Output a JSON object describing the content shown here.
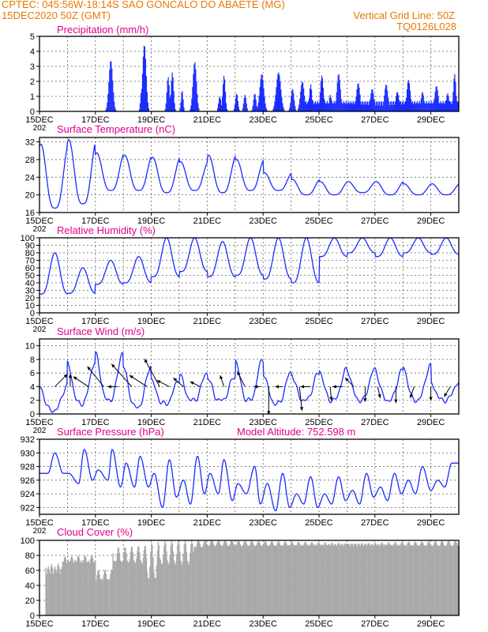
{
  "header": {
    "line1": "CPTEC:   045:56W-18:14S  SAO GONCALO DO ABAETE  (MG)",
    "line2_left": "15DEC2020 50Z (GMT)",
    "line2_right": "Vertical Grid Line: 50Z",
    "line3_right": "TQ0126L028"
  },
  "colors": {
    "header": "#e87800",
    "panel_title": "#e0008c",
    "series": "#1a2dff",
    "cloud_fill": "#a9a9a9",
    "grid": "#666666"
  },
  "x_axis": {
    "ticks": [
      "15DEC",
      "17DEC",
      "19DEC",
      "21DEC",
      "23DEC",
      "25DEC",
      "27DEC",
      "29DEC"
    ],
    "tick_days": [
      0,
      2,
      4,
      6,
      8,
      10,
      12,
      14
    ],
    "range_days": [
      0,
      15
    ],
    "first_tick_sublabel": "202"
  },
  "chart_data": [
    {
      "id": "precip",
      "type": "bar",
      "title": "Precipitation (mm/h)",
      "ylim": [
        0,
        5
      ],
      "yticks": [
        0,
        1,
        2,
        3,
        4,
        5
      ],
      "grid": true,
      "events": [
        {
          "day": 2.55,
          "peak": 3.4,
          "width": 0.15
        },
        {
          "day": 3.65,
          "peak": 1.5,
          "width": 0.08
        },
        {
          "day": 3.75,
          "peak": 4.45,
          "width": 0.14
        },
        {
          "day": 4.6,
          "peak": 2.3,
          "width": 0.1
        },
        {
          "day": 4.75,
          "peak": 2.6,
          "width": 0.1
        },
        {
          "day": 5.1,
          "peak": 1.4,
          "width": 0.08
        },
        {
          "day": 5.55,
          "peak": 3.3,
          "width": 0.14
        },
        {
          "day": 6.45,
          "peak": 1.0,
          "width": 0.1
        },
        {
          "day": 6.6,
          "peak": 2.4,
          "width": 0.1
        },
        {
          "day": 7.05,
          "peak": 1.2,
          "width": 0.1
        },
        {
          "day": 7.35,
          "peak": 1.1,
          "width": 0.1
        },
        {
          "day": 7.7,
          "peak": 1.2,
          "width": 0.1
        },
        {
          "day": 7.95,
          "peak": 2.5,
          "width": 0.16
        },
        {
          "day": 8.55,
          "peak": 2.6,
          "width": 0.18
        },
        {
          "day": 9.05,
          "peak": 1.5,
          "width": 0.12
        },
        {
          "day": 9.4,
          "peak": 2.0,
          "width": 0.15
        },
        {
          "day": 9.7,
          "peak": 1.8,
          "width": 0.1
        },
        {
          "day": 10.1,
          "peak": 2.4,
          "width": 0.12
        },
        {
          "day": 10.4,
          "peak": 1.1,
          "width": 0.1
        },
        {
          "day": 10.7,
          "peak": 2.5,
          "width": 0.14
        },
        {
          "day": 11.4,
          "peak": 1.9,
          "width": 0.14
        },
        {
          "day": 11.9,
          "peak": 1.5,
          "width": 0.14
        },
        {
          "day": 12.4,
          "peak": 1.8,
          "width": 0.14
        },
        {
          "day": 12.8,
          "peak": 1.3,
          "width": 0.14
        },
        {
          "day": 13.2,
          "peak": 2.1,
          "width": 0.14
        },
        {
          "day": 13.7,
          "peak": 1.3,
          "width": 0.12
        },
        {
          "day": 14.2,
          "peak": 1.7,
          "width": 0.14
        },
        {
          "day": 14.6,
          "peak": 1.2,
          "width": 0.12
        },
        {
          "day": 14.85,
          "peak": 2.5,
          "width": 0.1
        }
      ],
      "plateaus": [
        {
          "from": 9.3,
          "to": 15,
          "level": 0.7
        }
      ]
    },
    {
      "id": "temp",
      "type": "line",
      "title": "Surface Temperature (nC)",
      "ylim": [
        16,
        33
      ],
      "yticks": [
        16,
        20,
        24,
        28,
        32
      ],
      "grid": true,
      "daily_max": [
        31.5,
        32.5,
        29.5,
        29.0,
        28.5,
        27.5,
        29.0,
        28.0,
        25.0,
        23.5,
        23.0,
        23.0,
        23.0,
        22.5,
        22.5
      ],
      "daily_min": [
        17.0,
        18.0,
        21.0,
        21.0,
        20.5,
        21.0,
        20.5,
        21.0,
        21.0,
        20.0,
        20.0,
        20.5,
        20.0,
        20.0,
        20.0
      ]
    },
    {
      "id": "rh",
      "type": "line",
      "title": "Relative Humidity (%)",
      "ylim": [
        0,
        100
      ],
      "yticks": [
        0,
        10,
        20,
        30,
        40,
        50,
        60,
        70,
        80,
        90,
        100
      ],
      "grid": true,
      "daily_min": [
        25,
        26,
        38,
        40,
        48,
        55,
        48,
        50,
        45,
        40,
        75,
        80,
        75,
        80,
        78
      ],
      "daily_max": [
        80,
        60,
        70,
        75,
        100,
        100,
        95,
        100,
        100,
        100,
        100,
        100,
        100,
        100,
        100
      ]
    },
    {
      "id": "wind",
      "type": "line",
      "title": "Surface Wind (m/s)",
      "ylim": [
        0,
        11
      ],
      "yticks": [
        0,
        2,
        4,
        6,
        8,
        10
      ],
      "grid": true,
      "daily_max": [
        4.0,
        7.5,
        9.0,
        7.0,
        5.0,
        6.0,
        5.5,
        8.0,
        6.0,
        6.0,
        6.5,
        6.5,
        6.5,
        7.0,
        4.5
      ],
      "daily_min": [
        0.5,
        1.5,
        2.0,
        1.0,
        1.5,
        2.0,
        2.0,
        2.0,
        1.5,
        2.0,
        2.0,
        2.0,
        2.0,
        2.0,
        2.0
      ],
      "arrows": [
        {
          "day": 0.55,
          "u": 1.0,
          "v": 1.0
        },
        {
          "day": 1.1,
          "u": 0.0,
          "v": 1.0
        },
        {
          "day": 1.75,
          "u": -1.2,
          "v": 0.8
        },
        {
          "day": 2.3,
          "u": -1.3,
          "v": 1.6
        },
        {
          "day": 2.8,
          "u": -0.8,
          "v": 0.0
        },
        {
          "day": 3.3,
          "u": -1.6,
          "v": 1.8
        },
        {
          "day": 3.85,
          "u": -1.4,
          "v": 0.9
        },
        {
          "day": 4.3,
          "u": -1.2,
          "v": 2.2
        },
        {
          "day": 4.65,
          "u": -1.0,
          "v": 0.5
        },
        {
          "day": 5.15,
          "u": -0.8,
          "v": 0.7
        },
        {
          "day": 5.75,
          "u": -0.8,
          "v": 0.4
        },
        {
          "day": 6.6,
          "u": -0.3,
          "v": 0.9
        },
        {
          "day": 7.35,
          "u": -0.6,
          "v": 1.2
        },
        {
          "day": 7.9,
          "u": -0.5,
          "v": 0.0
        },
        {
          "day": 8.2,
          "u": 0.0,
          "v": -2.2
        },
        {
          "day": 8.7,
          "u": -0.6,
          "v": 0.0
        },
        {
          "day": 9.3,
          "u": 0.2,
          "v": -1.9
        },
        {
          "day": 9.7,
          "u": -0.8,
          "v": 0.0
        },
        {
          "day": 10.4,
          "u": 0.1,
          "v": -1.1
        },
        {
          "day": 10.85,
          "u": -0.8,
          "v": 0.0
        },
        {
          "day": 11.25,
          "u": -0.7,
          "v": 0.7
        },
        {
          "day": 11.65,
          "u": 0.0,
          "v": -1.2
        },
        {
          "day": 12.1,
          "u": 0.2,
          "v": -0.9
        },
        {
          "day": 12.75,
          "u": 0.0,
          "v": -1.3
        },
        {
          "day": 13.4,
          "u": -0.3,
          "v": -0.9
        },
        {
          "day": 14.0,
          "u": 0.0,
          "v": -1.1
        },
        {
          "day": 14.7,
          "u": -0.5,
          "v": -0.8
        }
      ]
    },
    {
      "id": "press",
      "type": "line",
      "title": "Surface Pressure (hPa)",
      "subtitle": "Model Altitude: 752.598 m",
      "ylim": [
        921,
        932
      ],
      "yticks": [
        922,
        924,
        926,
        928,
        930,
        932
      ],
      "grid": true,
      "peaks": [
        {
          "day": 0.55,
          "value": 930.0
        },
        {
          "day": 1.05,
          "value": 927.0
        },
        {
          "day": 1.6,
          "value": 930.5
        },
        {
          "day": 2.1,
          "value": 927.5
        },
        {
          "day": 2.6,
          "value": 930.5
        },
        {
          "day": 3.1,
          "value": 928.5
        },
        {
          "day": 3.6,
          "value": 929.5
        },
        {
          "day": 4.1,
          "value": 927.0
        },
        {
          "day": 4.65,
          "value": 929.0
        },
        {
          "day": 5.15,
          "value": 926.0
        },
        {
          "day": 5.65,
          "value": 929.5
        },
        {
          "day": 6.1,
          "value": 927.0
        },
        {
          "day": 6.6,
          "value": 929.0
        },
        {
          "day": 7.1,
          "value": 925.5
        },
        {
          "day": 7.7,
          "value": 928.0
        },
        {
          "day": 8.15,
          "value": 925.5
        },
        {
          "day": 8.7,
          "value": 927.0
        },
        {
          "day": 9.2,
          "value": 924.0
        },
        {
          "day": 9.7,
          "value": 926.5
        },
        {
          "day": 10.2,
          "value": 924.0
        },
        {
          "day": 10.7,
          "value": 926.5
        },
        {
          "day": 11.2,
          "value": 924.5
        },
        {
          "day": 11.7,
          "value": 927.0
        },
        {
          "day": 12.2,
          "value": 925.0
        },
        {
          "day": 12.7,
          "value": 927.0
        },
        {
          "day": 13.2,
          "value": 926.0
        },
        {
          "day": 13.7,
          "value": 928.0
        },
        {
          "day": 14.25,
          "value": 926.0
        },
        {
          "day": 14.75,
          "value": 928.5
        }
      ],
      "troughs": [
        {
          "day": 0.3,
          "value": 927.0
        },
        {
          "day": 0.85,
          "value": 927.0
        },
        {
          "day": 1.4,
          "value": 925.5
        },
        {
          "day": 1.9,
          "value": 926.0
        },
        {
          "day": 2.45,
          "value": 926.0
        },
        {
          "day": 2.9,
          "value": 925.0
        },
        {
          "day": 3.4,
          "value": 925.0
        },
        {
          "day": 3.9,
          "value": 925.0
        },
        {
          "day": 4.4,
          "value": 922.0
        },
        {
          "day": 4.9,
          "value": 923.5
        },
        {
          "day": 5.4,
          "value": 922.5
        },
        {
          "day": 5.9,
          "value": 924.0
        },
        {
          "day": 6.4,
          "value": 924.0
        },
        {
          "day": 6.9,
          "value": 923.0
        },
        {
          "day": 7.4,
          "value": 924.0
        },
        {
          "day": 7.9,
          "value": 922.5
        },
        {
          "day": 8.45,
          "value": 921.5
        },
        {
          "day": 8.95,
          "value": 922.0
        },
        {
          "day": 9.45,
          "value": 922.5
        },
        {
          "day": 9.95,
          "value": 922.0
        },
        {
          "day": 10.45,
          "value": 922.5
        },
        {
          "day": 10.95,
          "value": 923.0
        },
        {
          "day": 11.45,
          "value": 922.5
        },
        {
          "day": 11.95,
          "value": 923.5
        },
        {
          "day": 12.45,
          "value": 923.0
        },
        {
          "day": 12.95,
          "value": 924.0
        },
        {
          "day": 13.45,
          "value": 924.0
        },
        {
          "day": 14.0,
          "value": 924.5
        },
        {
          "day": 14.5,
          "value": 925.0
        }
      ]
    },
    {
      "id": "cloud",
      "type": "area",
      "title": "Cloud Cover (%)",
      "ylim": [
        0,
        100
      ],
      "yticks": [
        0,
        20,
        40,
        60,
        80,
        100
      ],
      "grid": true,
      "segments": [
        {
          "from": 0.2,
          "to": 0.8,
          "low": 40,
          "high": 80
        },
        {
          "from": 0.8,
          "to": 2.0,
          "low": 60,
          "high": 85
        },
        {
          "from": 2.0,
          "to": 2.6,
          "low": 35,
          "high": 65
        },
        {
          "from": 2.6,
          "to": 3.8,
          "low": 55,
          "high": 95
        },
        {
          "from": 3.8,
          "to": 4.3,
          "low": 20,
          "high": 100
        },
        {
          "from": 4.3,
          "to": 5.5,
          "low": 50,
          "high": 100
        },
        {
          "from": 5.5,
          "to": 6.0,
          "low": 85,
          "high": 100
        },
        {
          "from": 6.0,
          "to": 15.0,
          "low": 88,
          "high": 100
        }
      ]
    }
  ]
}
